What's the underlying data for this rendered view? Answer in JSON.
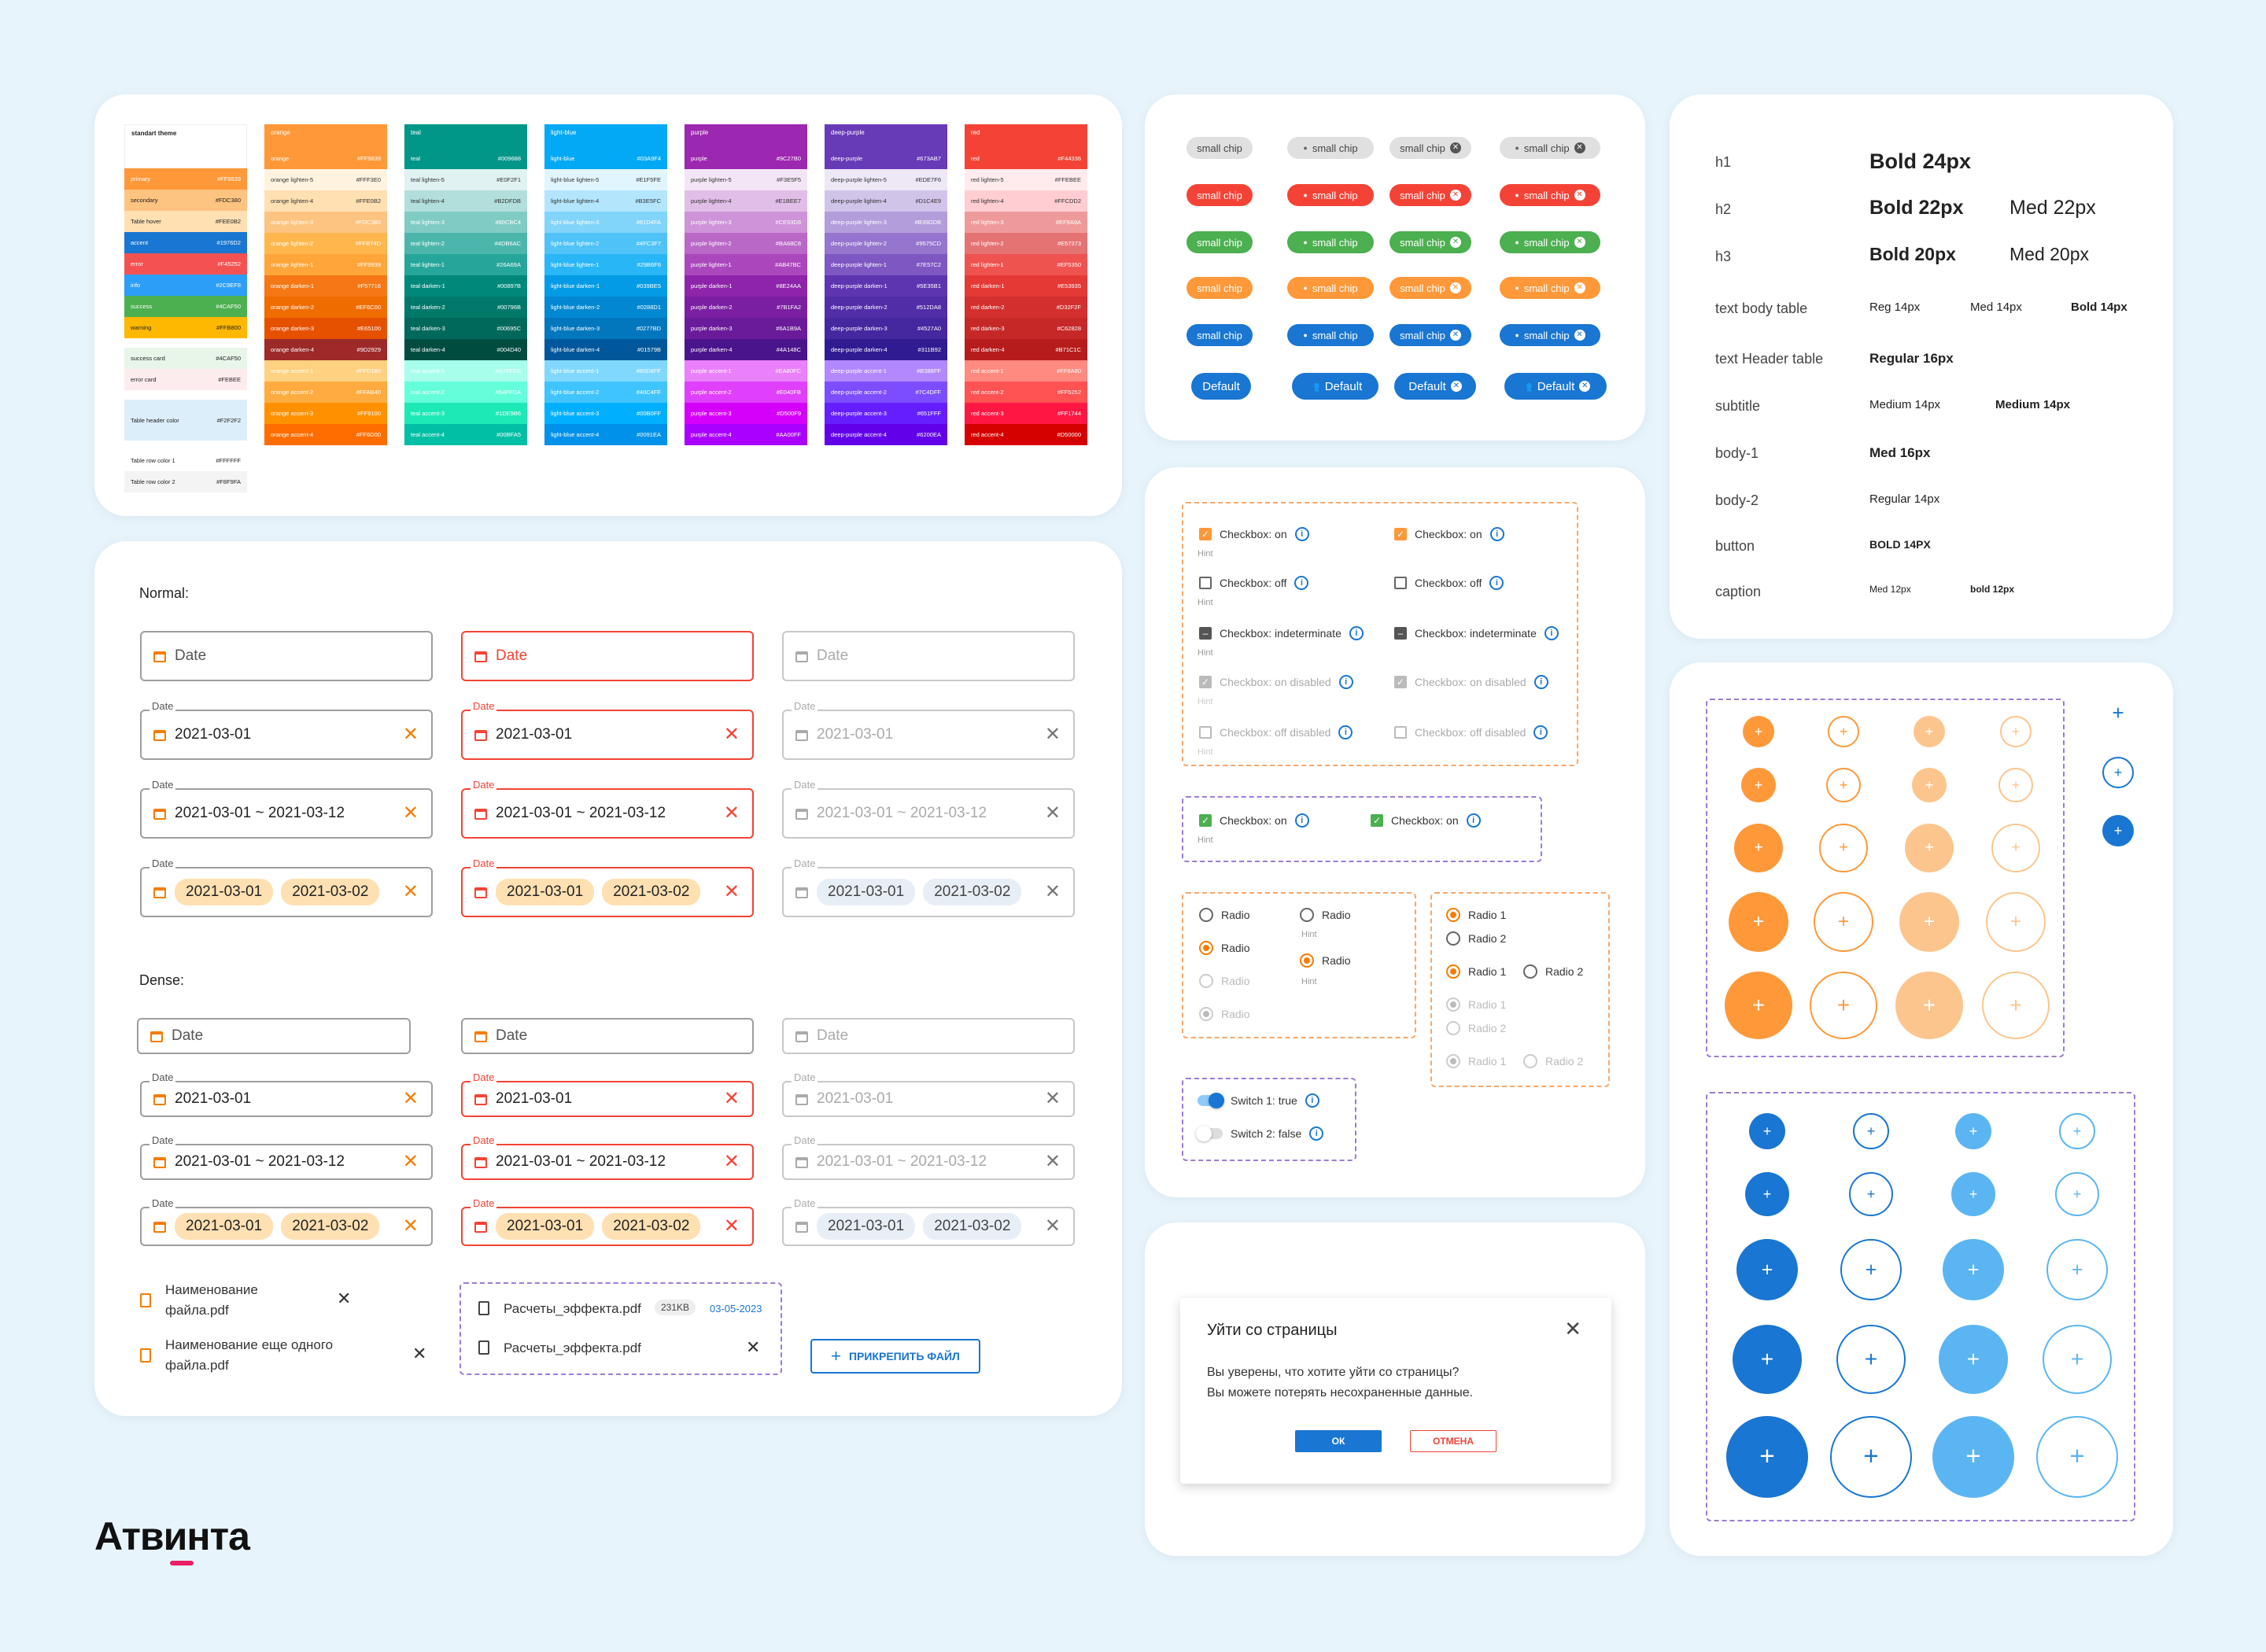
{
  "palette": {
    "theme": {
      "head": "standart theme",
      "rows": [
        {
          "n": "primary",
          "h": "#FF9839",
          "c": "#FF9839",
          "t": "#fff"
        },
        {
          "n": "secondary",
          "h": "#FDC380",
          "c": "#FDC380",
          "t": "#222"
        },
        {
          "n": "Table hover",
          "h": "#FEE0B2",
          "c": "#FEE0B2",
          "t": "#222"
        },
        {
          "n": "accent",
          "h": "#1976D2",
          "c": "#1976D2",
          "t": "#fff"
        },
        {
          "n": "error",
          "h": "#F45252",
          "c": "#F45252",
          "t": "#fff"
        },
        {
          "n": "info",
          "h": "#2C9EF8",
          "c": "#2C9EF8",
          "t": "#fff"
        },
        {
          "n": "success",
          "h": "#4CAF50",
          "c": "#4CAF50",
          "t": "#fff"
        },
        {
          "n": "warning",
          "h": "#FFB800",
          "c": "#FFB800",
          "t": "#222"
        },
        {
          "n": "success card",
          "h": "#4CAF50",
          "c": "#E8F5E9",
          "t": "#222"
        },
        {
          "n": "error card",
          "h": "#FEBEE",
          "c": "#FDECEE",
          "t": "#222"
        },
        {
          "n": "Table header color",
          "h": "#F2F2F2",
          "c": "#DDEEFB",
          "t": "#222"
        },
        {
          "n": "Table row color 1",
          "h": "#FFFFFF",
          "c": "#FFFFFF",
          "t": "#222"
        },
        {
          "n": "Table row color 2",
          "h": "#F8F9FA",
          "c": "#F4F4F4",
          "t": "#222"
        }
      ]
    },
    "groups": [
      {
        "head": "orange",
        "label": "orange",
        "rows": [
          {
            "n": "orange",
            "h": "#FF9839",
            "c": "#FF9839"
          },
          {
            "n": "orange lighten-5",
            "h": "#FFF3E0",
            "c": "#FFF3E0"
          },
          {
            "n": "orange lighten-4",
            "h": "#FFE0B2",
            "c": "#FFE0B2"
          },
          {
            "n": "orange lighten-3",
            "h": "#FDC380",
            "c": "#FDC380"
          },
          {
            "n": "orange lighten-2",
            "h": "#FFB74D",
            "c": "#FFB74D"
          },
          {
            "n": "orange lighten-1",
            "h": "#FF9939",
            "c": "#FFA53A"
          },
          {
            "n": "orange darken-1",
            "h": "#F57716",
            "c": "#F57716"
          },
          {
            "n": "orange darken-2",
            "h": "#EF6C00",
            "c": "#EF6C00"
          },
          {
            "n": "orange darken-3",
            "h": "#E65100",
            "c": "#E65100"
          },
          {
            "n": "orange darken-4",
            "h": "#9D2929",
            "c": "#9D2929"
          },
          {
            "n": "orange accent-1",
            "h": "#FFD180",
            "c": "#FFD180"
          },
          {
            "n": "orange accent-2",
            "h": "#FFAB40",
            "c": "#FFAB40"
          },
          {
            "n": "orange accent-3",
            "h": "#FF9100",
            "c": "#FF9100"
          },
          {
            "n": "orange accent-4",
            "h": "#FF6D00",
            "c": "#FF6D00"
          }
        ]
      },
      {
        "head": "teal",
        "label": "teal",
        "rows": [
          {
            "n": "teal",
            "h": "#009688",
            "c": "#009688"
          },
          {
            "n": "teal lighten-5",
            "h": "#E0F2F1",
            "c": "#E0F2F1"
          },
          {
            "n": "teal lighten-4",
            "h": "#B2DFDB",
            "c": "#B2DFDB"
          },
          {
            "n": "teal lighten-3",
            "h": "#80CBC4",
            "c": "#80CBC4"
          },
          {
            "n": "teal lighten-2",
            "h": "#4DB6AC",
            "c": "#4DB6AC"
          },
          {
            "n": "teal lighten-1",
            "h": "#26A69A",
            "c": "#26A69A"
          },
          {
            "n": "teal darken-1",
            "h": "#00897B",
            "c": "#00897B"
          },
          {
            "n": "teal darken-2",
            "h": "#00796B",
            "c": "#00796B"
          },
          {
            "n": "teal darken-3",
            "h": "#00695C",
            "c": "#00695C"
          },
          {
            "n": "teal darken-4",
            "h": "#004D40",
            "c": "#004D40"
          },
          {
            "n": "teal accent-1",
            "h": "#A7FFEB",
            "c": "#A7FFEB"
          },
          {
            "n": "teal accent-2",
            "h": "#64FFDA",
            "c": "#64FFDA"
          },
          {
            "n": "teal accent-3",
            "h": "#1DE9B6",
            "c": "#1DE9B6"
          },
          {
            "n": "teal accent-4",
            "h": "#00BFA5",
            "c": "#00BFA5"
          }
        ]
      },
      {
        "head": "light-blue",
        "label": "light-blue",
        "rows": [
          {
            "n": "light-blue",
            "h": "#03A9F4",
            "c": "#03A9F4"
          },
          {
            "n": "light-blue lighten-5",
            "h": "#E1F5FE",
            "c": "#E1F5FE"
          },
          {
            "n": "light-blue lighten-4",
            "h": "#B3E5FC",
            "c": "#B3E5FC"
          },
          {
            "n": "light-blue lighten-3",
            "h": "#81D4FA",
            "c": "#81D4FA"
          },
          {
            "n": "light-blue lighten-2",
            "h": "#4FC3F7",
            "c": "#4FC3F7"
          },
          {
            "n": "light-blue lighten-1",
            "h": "#29B6F6",
            "c": "#29B6F6"
          },
          {
            "n": "light-blue darken-1",
            "h": "#039BE5",
            "c": "#039BE5"
          },
          {
            "n": "light-blue darken-2",
            "h": "#0288D1",
            "c": "#0288D1"
          },
          {
            "n": "light-blue darken-3",
            "h": "#0277BD",
            "c": "#0277BD"
          },
          {
            "n": "light-blue darken-4",
            "h": "#01579B",
            "c": "#01579B"
          },
          {
            "n": "light-blue accent-1",
            "h": "#80D8FF",
            "c": "#80D8FF"
          },
          {
            "n": "light-blue accent-2",
            "h": "#40C4FF",
            "c": "#40C4FF"
          },
          {
            "n": "light-blue accent-3",
            "h": "#00B0FF",
            "c": "#00B0FF"
          },
          {
            "n": "light-blue accent-4",
            "h": "#0091EA",
            "c": "#0091EA"
          }
        ]
      },
      {
        "head": "purple",
        "label": "purple",
        "rows": [
          {
            "n": "purple",
            "h": "#9C27B0",
            "c": "#9C27B0"
          },
          {
            "n": "purple lighten-5",
            "h": "#F3E5F5",
            "c": "#F3E5F5"
          },
          {
            "n": "purple lighten-4",
            "h": "#E1BEE7",
            "c": "#E1BEE7"
          },
          {
            "n": "purple lighten-3",
            "h": "#CE93D8",
            "c": "#CE93D8"
          },
          {
            "n": "purple lighten-2",
            "h": "#BA68C8",
            "c": "#BA68C8"
          },
          {
            "n": "purple lighten-1",
            "h": "#AB47BC",
            "c": "#AB47BC"
          },
          {
            "n": "purple darken-1",
            "h": "#8E24AA",
            "c": "#8E24AA"
          },
          {
            "n": "purple darken-2",
            "h": "#7B1FA2",
            "c": "#7B1FA2"
          },
          {
            "n": "purple darken-3",
            "h": "#6A1B9A",
            "c": "#6A1B9A"
          },
          {
            "n": "purple darken-4",
            "h": "#4A148C",
            "c": "#4A148C"
          },
          {
            "n": "purple accent-1",
            "h": "#EA80FC",
            "c": "#EA80FC"
          },
          {
            "n": "purple accent-2",
            "h": "#E040FB",
            "c": "#E040FB"
          },
          {
            "n": "purple accent-3",
            "h": "#D500F9",
            "c": "#D500F9"
          },
          {
            "n": "purple accent-4",
            "h": "#AA00FF",
            "c": "#AA00FF"
          }
        ]
      },
      {
        "head": "deep-purple",
        "label": "deep-purple",
        "rows": [
          {
            "n": "deep-purple",
            "h": "#673AB7",
            "c": "#673AB7"
          },
          {
            "n": "deep-purple lighten-5",
            "h": "#EDE7F6",
            "c": "#EDE7F6"
          },
          {
            "n": "deep-purple lighten-4",
            "h": "#D1C4E9",
            "c": "#D1C4E9"
          },
          {
            "n": "deep-purple lighten-3",
            "h": "#B39DDB",
            "c": "#B39DDB"
          },
          {
            "n": "deep-purple lighten-2",
            "h": "#9575CD",
            "c": "#9575CD"
          },
          {
            "n": "deep-purple lighten-1",
            "h": "#7E57C2",
            "c": "#7E57C2"
          },
          {
            "n": "deep-purple darken-1",
            "h": "#5E35B1",
            "c": "#5E35B1"
          },
          {
            "n": "deep-purple darken-2",
            "h": "#512DA8",
            "c": "#512DA8"
          },
          {
            "n": "deep-purple darken-3",
            "h": "#4527A0",
            "c": "#4527A0"
          },
          {
            "n": "deep-purple darken-4",
            "h": "#311B92",
            "c": "#311B92"
          },
          {
            "n": "deep-purple accent-1",
            "h": "#B388FF",
            "c": "#B388FF"
          },
          {
            "n": "deep-purple accent-2",
            "h": "#7C4DFF",
            "c": "#7C4DFF"
          },
          {
            "n": "deep-purple accent-3",
            "h": "#651FFF",
            "c": "#651FFF"
          },
          {
            "n": "deep-purple accent-4",
            "h": "#6200EA",
            "c": "#6200EA"
          }
        ]
      },
      {
        "head": "red",
        "label": "red",
        "rows": [
          {
            "n": "red",
            "h": "#F44336",
            "c": "#F44336"
          },
          {
            "n": "red lighten-5",
            "h": "#FFEBEE",
            "c": "#FFEBEE"
          },
          {
            "n": "red lighten-4",
            "h": "#FFCDD2",
            "c": "#FFCDD2"
          },
          {
            "n": "red lighten-3",
            "h": "#EF9A9A",
            "c": "#EF9A9A"
          },
          {
            "n": "red lighten-2",
            "h": "#E57373",
            "c": "#E57373"
          },
          {
            "n": "red lighten-1",
            "h": "#EF5350",
            "c": "#EF5350"
          },
          {
            "n": "red darken-1",
            "h": "#E53935",
            "c": "#E53935"
          },
          {
            "n": "red darken-2",
            "h": "#D32F2F",
            "c": "#D32F2F"
          },
          {
            "n": "red darken-3",
            "h": "#C62828",
            "c": "#C62828"
          },
          {
            "n": "red darken-4",
            "h": "#B71C1C",
            "c": "#B71C1C"
          },
          {
            "n": "red accent-1",
            "h": "#FF8A80",
            "c": "#FF8A80"
          },
          {
            "n": "red accent-2",
            "h": "#FF5252",
            "c": "#FF5252"
          },
          {
            "n": "red accent-3",
            "h": "#FF1744",
            "c": "#FF1744"
          },
          {
            "n": "red accent-4",
            "h": "#D50000",
            "c": "#D50000"
          }
        ]
      }
    ]
  },
  "chips": {
    "label": "small chip",
    "default_label": "Default",
    "colors": [
      "#e0e0e0",
      "#f44336",
      "#4caf50",
      "#ff9839",
      "#1976d2",
      "#1976d2"
    ],
    "text_colors": [
      "#444",
      "#fff",
      "#fff",
      "#fff",
      "#fff",
      "#fff"
    ]
  },
  "datefields": {
    "normal_title": "Normal:",
    "dense_title": "Dense:",
    "placeholder": "Date",
    "label": "Date",
    "single": "2021-03-01",
    "range": "2021-03-01 ~ 2021-03-12",
    "chip1": "2021-03-01",
    "chip2": "2021-03-02"
  },
  "files": {
    "f1a": "Наименование",
    "f1b": "файла.pdf",
    "f2a": "Наименование еще одного",
    "f2b": "файла.pdf",
    "g1": "Расчеты_эффекта.pdf",
    "g1size": "231KB",
    "g1date": "03-05-2023",
    "g2": "Расчеты_эффекта.pdf",
    "attach": "ПРИКРЕПИТЬ ФАЙЛ"
  },
  "checks": {
    "on": "Checkbox: on",
    "off": "Checkbox: off",
    "ind": "Checkbox: indeterminate",
    "ondis": "Checkbox: on disabled",
    "offdis": "Checkbox: off disabled",
    "hint": "Hint"
  },
  "radios": {
    "radio": "Radio",
    "r1": "Radio 1",
    "r2": "Radio 2",
    "hint": "Hint"
  },
  "switches": {
    "s1": "Switch 1: true",
    "s2": "Switch 2: false"
  },
  "dialog": {
    "title": "Уйти со страницы",
    "line1": "Вы уверены, что хотите уйти со страницы?",
    "line2": "Вы можете потерять несохраненные данные.",
    "ok": "ОК",
    "cancel": "ОТМЕНА"
  },
  "typography": {
    "h1": "h1",
    "h1a": "Bold 24px",
    "h2": "h2",
    "h2a": "Bold 22px",
    "h2b": "Med 22px",
    "h3": "h3",
    "h3a": "Bold 20px",
    "h3b": "Med 20px",
    "tb": "text body table",
    "tba": "Reg 14px",
    "tbb": "Med 14px",
    "tbc": "Bold 14px",
    "th": "text Header table",
    "tha": "Regular 16px",
    "sub": "subtitle",
    "suba": "Medium 14px",
    "subb": "Medium 14px",
    "b1": "body-1",
    "b1a": "Med 16px",
    "b2": "body-2",
    "b2a": "Regular 14px",
    "btn": "button",
    "btna": "BOLD 14PX",
    "cap": "caption",
    "capa": "Med 12px",
    "capb": "bold 12px"
  },
  "fabs": {
    "plus": "+",
    "orange": "#ff9839",
    "orange_light": "#fcc58e",
    "blue": "#1976d2",
    "blue_light": "#5bb5f2"
  },
  "brand": {
    "logo": "Атвинта",
    "accent": "#e91e63"
  }
}
